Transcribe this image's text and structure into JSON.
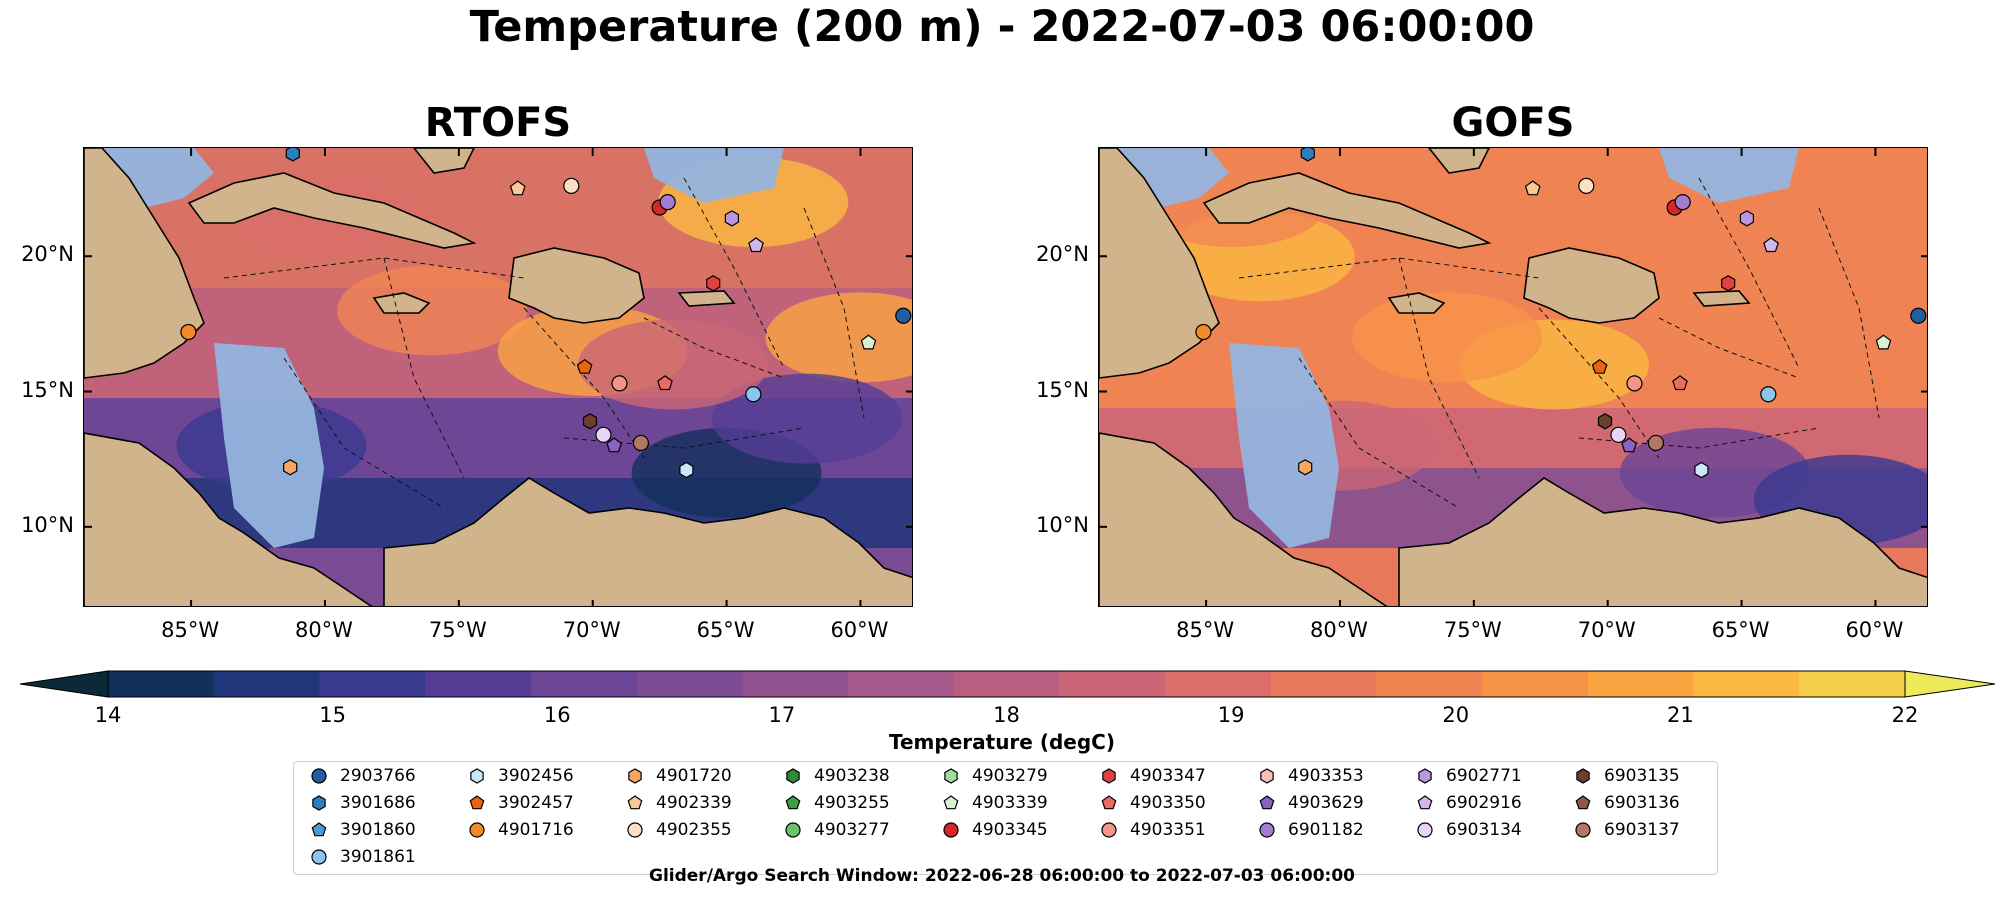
{
  "figure_title": "Temperature (200 m) - 2022-07-03 06:00:00",
  "chart_data": [
    {
      "type": "heatmap",
      "title": "RTOFS",
      "xlim": [
        -89,
        -58
      ],
      "ylim": [
        7,
        24
      ],
      "x_ticks": [
        -85,
        -80,
        -75,
        -70,
        -65,
        -60
      ],
      "x_tick_labels": [
        "85°W",
        "80°W",
        "75°W",
        "70°W",
        "65°W",
        "60°W"
      ],
      "y_ticks": [
        10,
        15,
        20
      ],
      "y_tick_labels": [
        "10°N",
        "15°N",
        "20°N"
      ],
      "field_features": [
        {
          "lon": -76,
          "lat": 18,
          "value": 20
        },
        {
          "lon": -70,
          "lat": 16.5,
          "value": 21
        },
        {
          "lon": -64,
          "lat": 22,
          "value": 21.5
        },
        {
          "lon": -60,
          "lat": 17,
          "value": 21
        },
        {
          "lon": -82,
          "lat": 13,
          "value": 15
        },
        {
          "lon": -65,
          "lat": 12,
          "value": 14
        },
        {
          "lon": -62,
          "lat": 14,
          "value": 15.5
        },
        {
          "lon": -80,
          "lat": 21.5,
          "value": 19
        },
        {
          "lon": -67,
          "lat": 16,
          "value": 18.5
        }
      ]
    },
    {
      "type": "heatmap",
      "title": "GOFS",
      "xlim": [
        -89,
        -58
      ],
      "ylim": [
        7,
        24
      ],
      "x_ticks": [
        -85,
        -80,
        -75,
        -70,
        -65,
        -60
      ],
      "x_tick_labels": [
        "85°W",
        "80°W",
        "75°W",
        "70°W",
        "65°W",
        "60°W"
      ],
      "y_ticks": [
        10,
        15,
        20
      ],
      "y_tick_labels": [
        "10°N",
        "15°N",
        "20°N"
      ],
      "field_features": [
        {
          "lon": -83,
          "lat": 20,
          "value": 21.5
        },
        {
          "lon": -72,
          "lat": 16,
          "value": 21.5
        },
        {
          "lon": -76,
          "lat": 17,
          "value": 20.5
        },
        {
          "lon": -65,
          "lat": 18,
          "value": 20
        },
        {
          "lon": -80,
          "lat": 13,
          "value": 18.5
        },
        {
          "lon": -66,
          "lat": 12,
          "value": 16
        },
        {
          "lon": -61,
          "lat": 11,
          "value": 15
        },
        {
          "lon": -84,
          "lat": 22,
          "value": 20
        }
      ]
    }
  ],
  "colorbar": {
    "label": "Temperature (degC)",
    "min": 14,
    "max": 22,
    "step": 0.5,
    "ticks": [
      "14",
      "15",
      "16",
      "17",
      "18",
      "19",
      "20",
      "21",
      "22"
    ],
    "colors": [
      "#0b2a39",
      "#12305c",
      "#20357a",
      "#3a3a91",
      "#553d96",
      "#6b4596",
      "#7e4c95",
      "#925290",
      "#a6588a",
      "#b95e80",
      "#cb6676",
      "#db6e6a",
      "#e8795d",
      "#f18552",
      "#f89448",
      "#fba542",
      "#fbb941",
      "#f6cf4a",
      "#ecea59"
    ]
  },
  "legend": {
    "title": "Glider/Argo Search Window: 2022-06-28 06:00:00 to 2022-07-03 06:00:00",
    "items": [
      {
        "label": "2903766",
        "marker": "circle",
        "color": "#1f5fa0"
      },
      {
        "label": "3901686",
        "marker": "hexagon",
        "color": "#2f7fc0"
      },
      {
        "label": "3901860",
        "marker": "pentagon",
        "color": "#4a9ad6"
      },
      {
        "label": "3901861",
        "marker": "circle",
        "color": "#8cc5ec"
      },
      {
        "label": "3902456",
        "marker": "hexagon",
        "color": "#cbe6f7"
      },
      {
        "label": "3902457",
        "marker": "pentagon",
        "color": "#e8640e"
      },
      {
        "label": "4901716",
        "marker": "circle",
        "color": "#f28a2a"
      },
      {
        "label": "4901720",
        "marker": "hexagon",
        "color": "#f7a760"
      },
      {
        "label": "4902339",
        "marker": "pentagon",
        "color": "#fac898"
      },
      {
        "label": "4902355",
        "marker": "circle",
        "color": "#fde0c4"
      },
      {
        "label": "4903238",
        "marker": "hexagon",
        "color": "#2e8b3a"
      },
      {
        "label": "4903255",
        "marker": "pentagon",
        "color": "#3aa244"
      },
      {
        "label": "4903277",
        "marker": "circle",
        "color": "#6cc46a"
      },
      {
        "label": "4903279",
        "marker": "hexagon",
        "color": "#a4dca0"
      },
      {
        "label": "4903339",
        "marker": "pentagon",
        "color": "#d9f2d2"
      },
      {
        "label": "4903345",
        "marker": "circle",
        "color": "#d62728"
      },
      {
        "label": "4903347",
        "marker": "hexagon",
        "color": "#e0423e"
      },
      {
        "label": "4903350",
        "marker": "pentagon",
        "color": "#ec6a62"
      },
      {
        "label": "4903351",
        "marker": "circle",
        "color": "#f4948a"
      },
      {
        "label": "4903353",
        "marker": "hexagon",
        "color": "#f9c3bc"
      },
      {
        "label": "4903629",
        "marker": "pentagon",
        "color": "#8a63c2"
      },
      {
        "label": "6901182",
        "marker": "circle",
        "color": "#a57cd4"
      },
      {
        "label": "6902771",
        "marker": "hexagon",
        "color": "#bb96e0"
      },
      {
        "label": "6902916",
        "marker": "pentagon",
        "color": "#d3b6ec"
      },
      {
        "label": "6903134",
        "marker": "circle",
        "color": "#e8d5f6"
      },
      {
        "label": "6903135",
        "marker": "hexagon",
        "color": "#6b3f2e"
      },
      {
        "label": "6903136",
        "marker": "pentagon",
        "color": "#8c5a45"
      },
      {
        "label": "6903137",
        "marker": "circle",
        "color": "#b07a62"
      }
    ]
  },
  "floats": [
    {
      "id": "2903766",
      "lon": -58.4,
      "lat": 17.8
    },
    {
      "id": "3901686",
      "lon": -81.2,
      "lat": 23.8
    },
    {
      "id": "4901716",
      "lon": -85.1,
      "lat": 17.2
    },
    {
      "id": "4901720",
      "lon": -81.3,
      "lat": 12.2
    },
    {
      "id": "4902339",
      "lon": -72.8,
      "lat": 22.5
    },
    {
      "id": "4902355",
      "lon": -70.8,
      "lat": 22.6
    },
    {
      "id": "4903345",
      "lon": -67.5,
      "lat": 21.8
    },
    {
      "id": "6901182",
      "lon": -67.2,
      "lat": 22.0
    },
    {
      "id": "6902771",
      "lon": -64.8,
      "lat": 21.4
    },
    {
      "id": "6902916",
      "lon": -63.9,
      "lat": 20.4
    },
    {
      "id": "4903347",
      "lon": -65.5,
      "lat": 19.0
    },
    {
      "id": "3902457",
      "lon": -70.3,
      "lat": 15.9
    },
    {
      "id": "4903351",
      "lon": -69.0,
      "lat": 15.3
    },
    {
      "id": "4903350",
      "lon": -67.3,
      "lat": 15.3
    },
    {
      "id": "3901861",
      "lon": -64.0,
      "lat": 14.9
    },
    {
      "id": "4903339",
      "lon": -59.7,
      "lat": 16.8
    },
    {
      "id": "6903135",
      "lon": -70.1,
      "lat": 13.9
    },
    {
      "id": "6903134",
      "lon": -69.6,
      "lat": 13.4
    },
    {
      "id": "6903137",
      "lon": -68.2,
      "lat": 13.1
    },
    {
      "id": "4903629",
      "lon": -69.2,
      "lat": 13.0
    },
    {
      "id": "3902456",
      "lon": -66.5,
      "lat": 12.1
    }
  ]
}
